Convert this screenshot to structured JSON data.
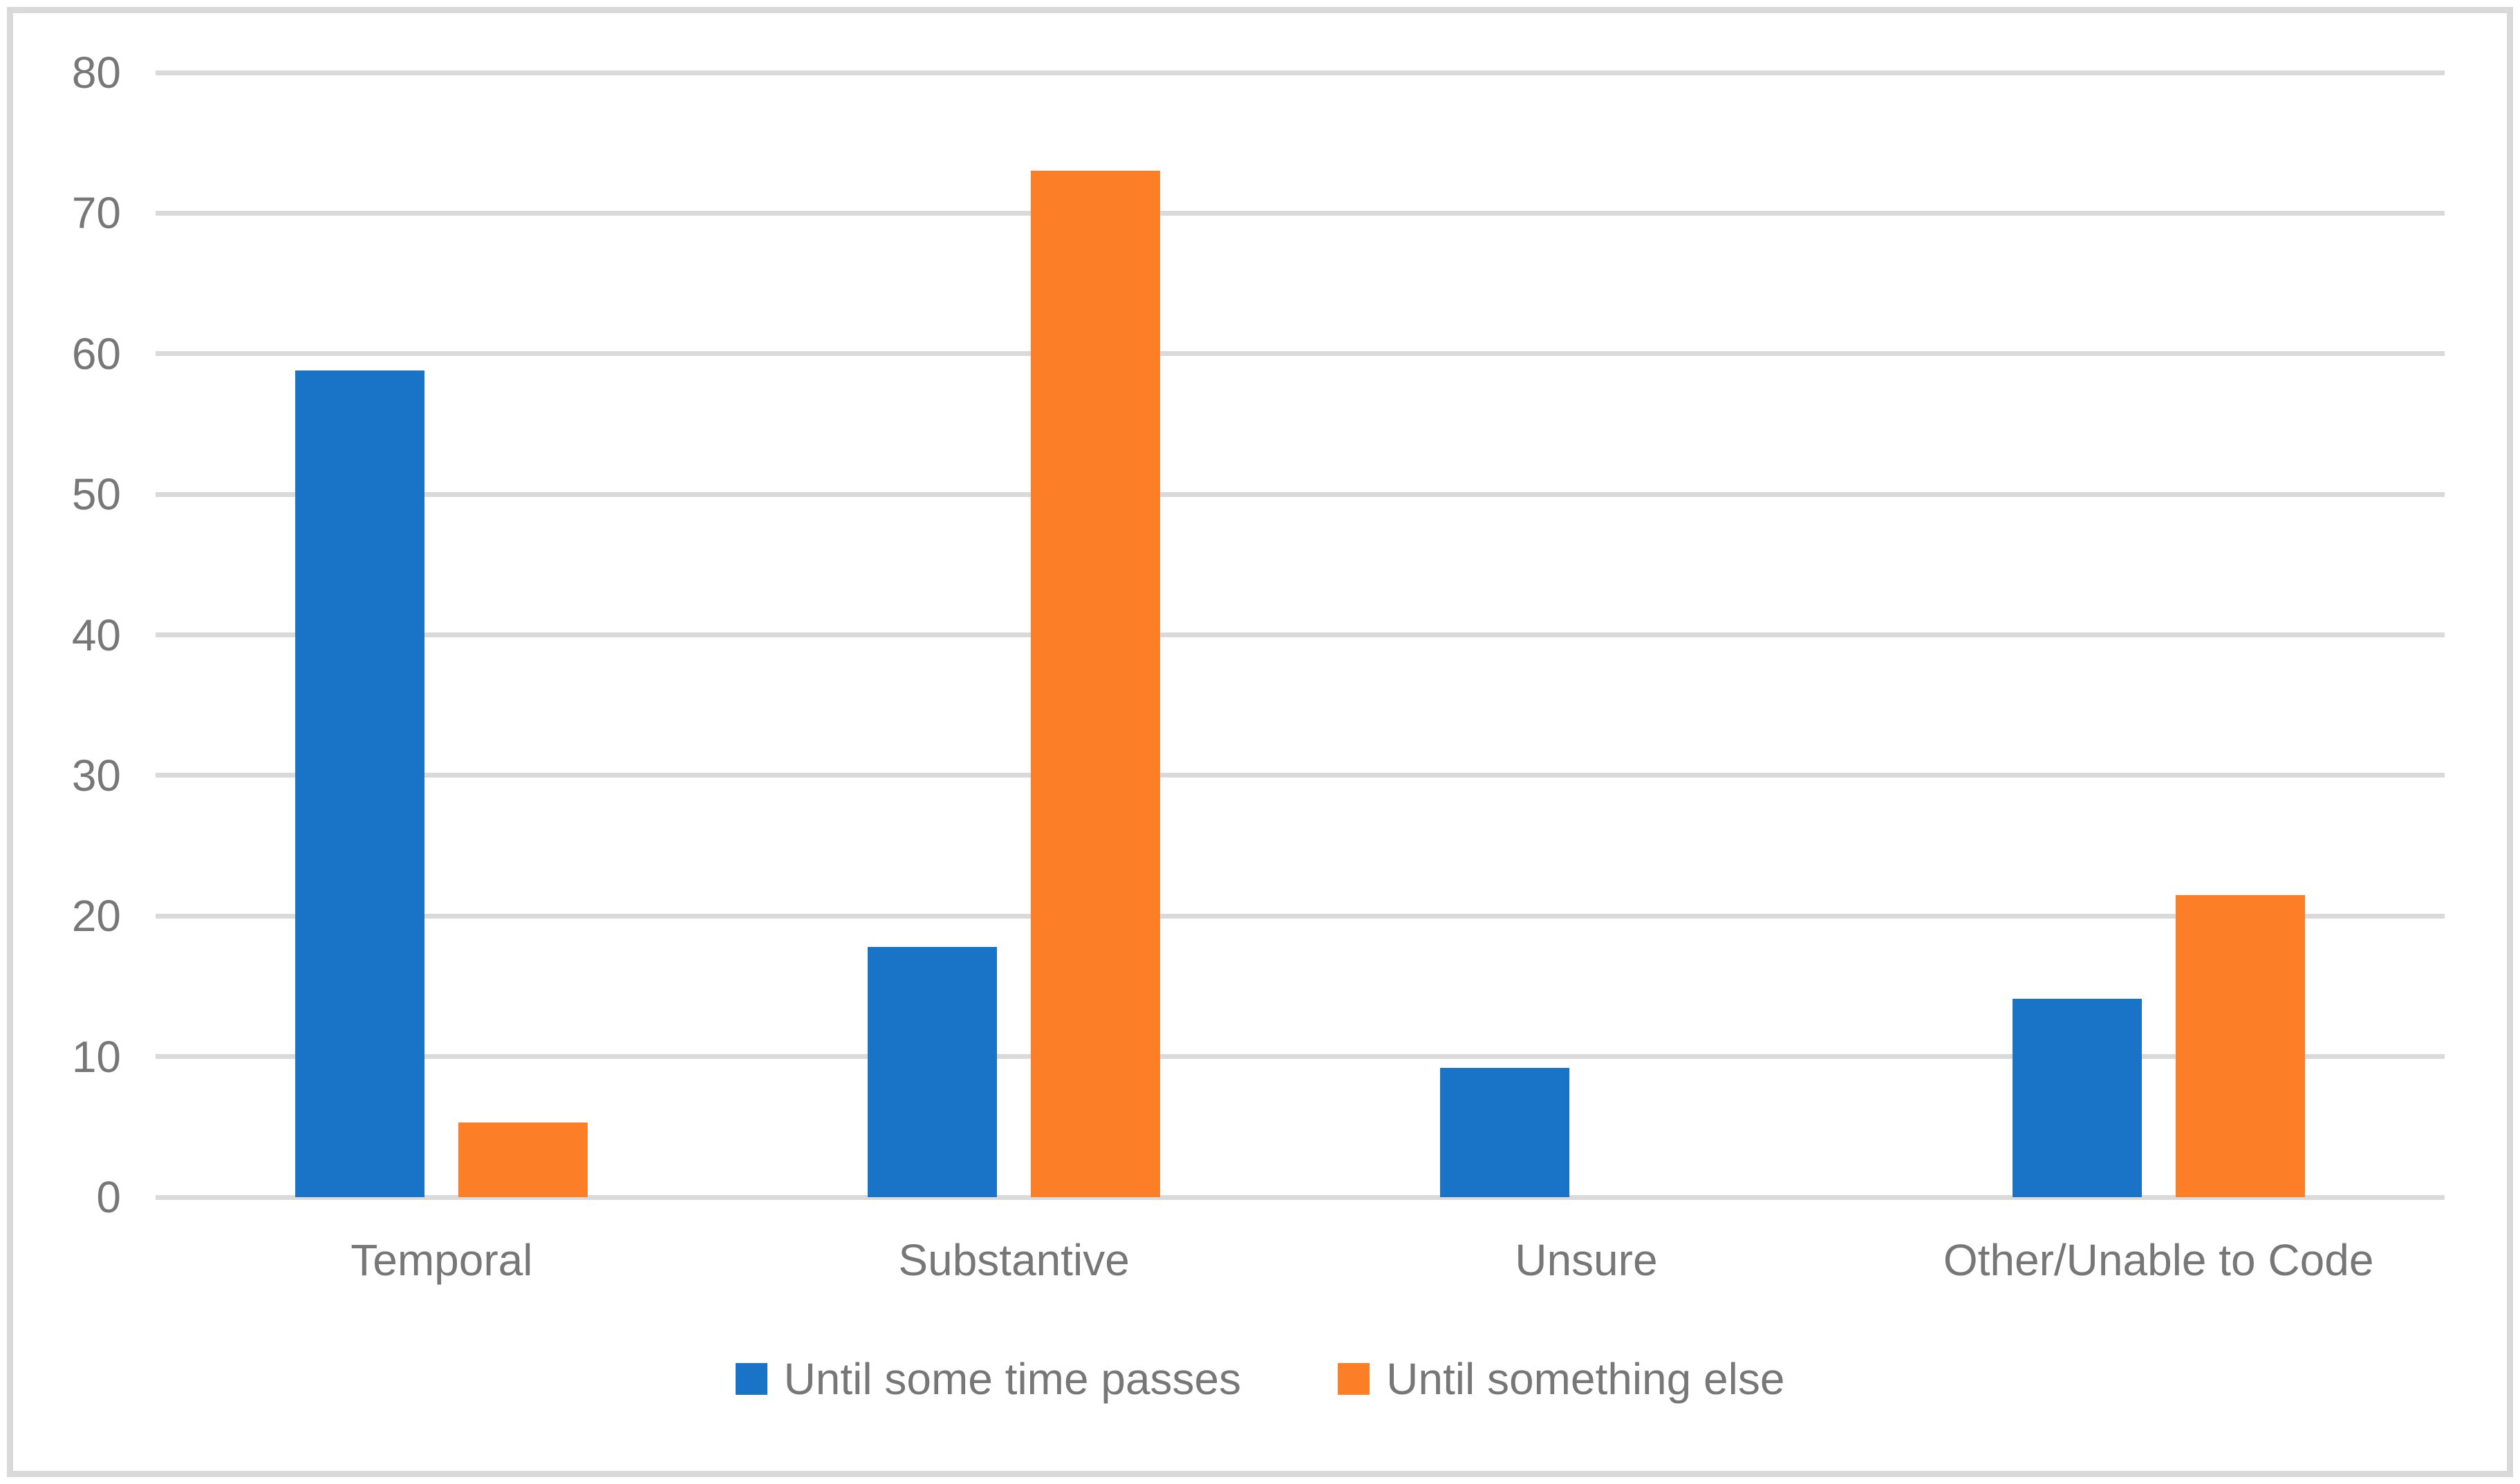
{
  "figure": {
    "background": "#FFFFFF",
    "border_color": "#D9D9D9"
  },
  "chart_data": {
    "type": "bar",
    "categories": [
      "Temporal",
      "Substantive",
      "Unsure",
      "Other/Unable to Code"
    ],
    "series": [
      {
        "name": "Until some time passes",
        "color": "#1973C6",
        "values": [
          58.8,
          17.8,
          9.2,
          14.1
        ]
      },
      {
        "name": "Until something else",
        "color": "#FC7E27",
        "values": [
          5.3,
          73.0,
          0,
          21.5
        ]
      }
    ],
    "ylim": [
      0,
      80
    ],
    "yticks": [
      0,
      10,
      20,
      30,
      40,
      50,
      60,
      70,
      80
    ],
    "grid": "horizontal",
    "gridline_color": "#DADADA",
    "tick_label_color": "#777777",
    "legend_position": "bottom-center"
  }
}
